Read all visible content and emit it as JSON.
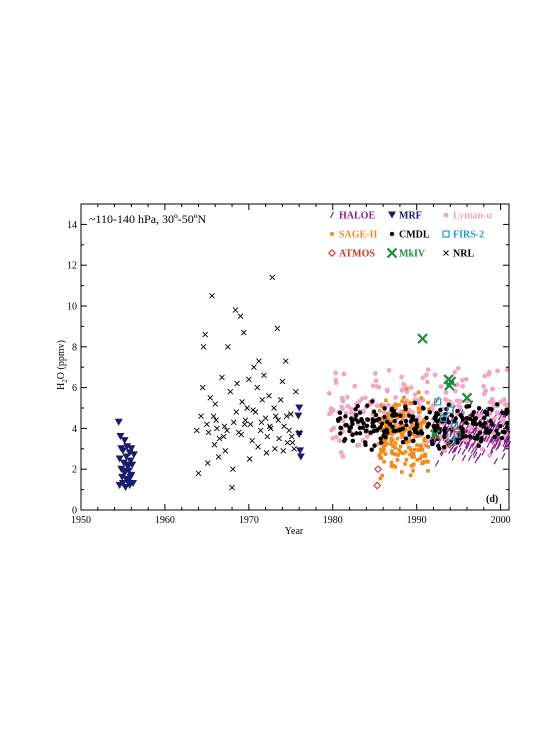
{
  "chart_data": {
    "type": "scatter",
    "region_label": "~110-140 hPa, 30º-50ºN",
    "panel_label": "(d)",
    "xlabel": "Year",
    "ylabel_main": "H",
    "ylabel_sub": "2",
    "ylabel_rest": "O (ppmv)",
    "xlim": [
      1950,
      2001
    ],
    "ylim": [
      0,
      15
    ],
    "x_ticks": [
      "1950",
      "1960",
      "1970",
      "1980",
      "1990",
      "2000"
    ],
    "y_ticks": [
      "0",
      "2",
      "4",
      "6",
      "8",
      "10",
      "12",
      "14"
    ],
    "grid": false,
    "legend_position": "top-right",
    "series": [
      {
        "name": "HALOE",
        "color": "#8B1E8F",
        "marker": "slash",
        "x_range": [
          1991.8,
          2001
        ],
        "y_center": 3.8,
        "spread": 1.4,
        "count": 260,
        "seed": 11
      },
      {
        "name": "MRF",
        "color": "#1B1B6E",
        "marker": "triangle-down",
        "points": [
          [
            1954.5,
            4.3
          ],
          [
            1954.6,
            1.2
          ],
          [
            1954.7,
            3.6
          ],
          [
            1954.8,
            2.0
          ],
          [
            1954.9,
            1.6
          ],
          [
            1955.0,
            2.9
          ],
          [
            1955.0,
            1.3
          ],
          [
            1955.1,
            2.3
          ],
          [
            1955.2,
            1.8
          ],
          [
            1955.2,
            3.4
          ],
          [
            1955.3,
            1.1
          ],
          [
            1955.4,
            2.6
          ],
          [
            1955.4,
            1.5
          ],
          [
            1955.5,
            3.1
          ],
          [
            1955.6,
            2.1
          ],
          [
            1955.6,
            1.4
          ],
          [
            1955.7,
            1.9
          ],
          [
            1955.8,
            2.8
          ],
          [
            1955.8,
            1.2
          ],
          [
            1955.9,
            2.4
          ],
          [
            1956.0,
            1.7
          ],
          [
            1956.0,
            3.0
          ],
          [
            1956.1,
            2.2
          ],
          [
            1956.2,
            1.3
          ],
          [
            1956.3,
            2.7
          ],
          [
            1954.6,
            2.5
          ],
          [
            1954.8,
            3.0
          ],
          [
            1955.1,
            1.9
          ],
          [
            1955.5,
            2.2
          ],
          [
            1955.9,
            1.6
          ],
          [
            1976.0,
            5.0
          ],
          [
            1976.0,
            3.7
          ],
          [
            1976.1,
            2.9
          ],
          [
            1976.2,
            2.6
          ],
          [
            1975.9,
            4.6
          ]
        ]
      },
      {
        "name": "Lyman-α",
        "color": "#F2A6C6",
        "marker": "circle",
        "x_range": [
          1979.5,
          2001
        ],
        "y_center": 4.8,
        "spread": 2.4,
        "count": 230,
        "seed": 23
      },
      {
        "name": "SAGE-II",
        "color": "#F08C1E",
        "marker": "square",
        "x_range": [
          1985.5,
          1991.5
        ],
        "y_center": 3.5,
        "spread": 2.2,
        "count": 200,
        "seed": 37
      },
      {
        "name": "CMDL",
        "color": "#000000",
        "marker": "dot",
        "x_range": [
          1980.5,
          2000.8
        ],
        "y_center": 4.2,
        "spread": 1.3,
        "count": 230,
        "seed": 53
      },
      {
        "name": "FIRS-2",
        "color": "#1E9EC8",
        "marker": "open-square",
        "points": [
          [
            1992.5,
            5.3
          ],
          [
            1994.0,
            4.9
          ],
          [
            1994.2,
            3.3
          ],
          [
            1994.5,
            4.1
          ],
          [
            1994.8,
            3.7
          ],
          [
            1993.2,
            4.5
          ]
        ]
      },
      {
        "name": "ATMOS",
        "color": "#E03020",
        "marker": "diamond",
        "points": [
          [
            1985.3,
            1.2
          ],
          [
            1985.4,
            2.0
          ],
          [
            1992.2,
            3.6
          ],
          [
            1993.9,
            3.2
          ],
          [
            1994.8,
            3.9
          ]
        ]
      },
      {
        "name": "MkIV",
        "color": "#1E8C3C",
        "marker": "x-bold",
        "points": [
          [
            1990.7,
            8.4
          ],
          [
            1992.2,
            3.7
          ],
          [
            1993.8,
            6.4
          ],
          [
            1993.9,
            6.1
          ],
          [
            1994.1,
            6.3
          ],
          [
            1996.0,
            5.5
          ]
        ]
      },
      {
        "name": "NRL",
        "color": "#000000",
        "marker": "x",
        "points": [
          [
            1964.5,
            6.0
          ],
          [
            1964.6,
            8.0
          ],
          [
            1964.8,
            8.6
          ],
          [
            1965.0,
            4.2
          ],
          [
            1965.2,
            3.8
          ],
          [
            1965.4,
            5.5
          ],
          [
            1965.6,
            10.5
          ],
          [
            1965.8,
            4.6
          ],
          [
            1966.0,
            5.2
          ],
          [
            1966.2,
            4.0
          ],
          [
            1966.5,
            3.5
          ],
          [
            1966.8,
            6.5
          ],
          [
            1967.0,
            3.6
          ],
          [
            1967.2,
            2.9
          ],
          [
            1967.5,
            8.0
          ],
          [
            1967.8,
            5.8
          ],
          [
            1968.0,
            1.1
          ],
          [
            1968.2,
            4.3
          ],
          [
            1968.4,
            9.8
          ],
          [
            1968.6,
            6.2
          ],
          [
            1968.8,
            3.8
          ],
          [
            1969.0,
            9.5
          ],
          [
            1969.2,
            5.3
          ],
          [
            1969.4,
            8.7
          ],
          [
            1969.6,
            4.4
          ],
          [
            1969.8,
            5.0
          ],
          [
            1970.0,
            6.4
          ],
          [
            1970.2,
            4.2
          ],
          [
            1970.4,
            3.4
          ],
          [
            1970.6,
            7.0
          ],
          [
            1970.8,
            4.8
          ],
          [
            1971.0,
            6.0
          ],
          [
            1971.2,
            7.3
          ],
          [
            1971.4,
            3.9
          ],
          [
            1971.6,
            5.4
          ],
          [
            1971.8,
            6.6
          ],
          [
            1972.0,
            4.5
          ],
          [
            1972.2,
            3.6
          ],
          [
            1972.4,
            5.6
          ],
          [
            1972.6,
            4.0
          ],
          [
            1972.8,
            11.4
          ],
          [
            1973.0,
            5.0
          ],
          [
            1973.2,
            4.6
          ],
          [
            1973.4,
            8.9
          ],
          [
            1973.6,
            3.5
          ],
          [
            1973.8,
            5.4
          ],
          [
            1974.0,
            6.3
          ],
          [
            1974.2,
            4.1
          ],
          [
            1974.4,
            7.3
          ],
          [
            1974.6,
            3.3
          ],
          [
            1974.8,
            3.9
          ],
          [
            1975.0,
            4.7
          ],
          [
            1975.2,
            3.3
          ],
          [
            1975.4,
            3.0
          ],
          [
            1975.6,
            5.8
          ],
          [
            1963.8,
            3.9
          ],
          [
            1964.0,
            1.8
          ],
          [
            1964.3,
            4.6
          ],
          [
            1965.1,
            2.3
          ],
          [
            1965.9,
            3.2
          ],
          [
            1966.4,
            2.6
          ],
          [
            1967.4,
            3.9
          ],
          [
            1968.1,
            2.0
          ],
          [
            1969.1,
            3.7
          ],
          [
            1970.1,
            2.5
          ],
          [
            1971.1,
            3.1
          ],
          [
            1972.1,
            2.8
          ],
          [
            1973.1,
            3.0
          ],
          [
            1974.1,
            2.9
          ],
          [
            1975.1,
            3.6
          ],
          [
            1976.0,
            3.8
          ],
          [
            1966.1,
            4.4
          ],
          [
            1967.1,
            4.1
          ],
          [
            1968.5,
            4.8
          ],
          [
            1969.5,
            4.2
          ],
          [
            1970.5,
            4.9
          ],
          [
            1971.5,
            4.3
          ],
          [
            1972.5,
            4.1
          ],
          [
            1973.5,
            4.4
          ],
          [
            1974.5,
            4.6
          ]
        ]
      }
    ]
  }
}
